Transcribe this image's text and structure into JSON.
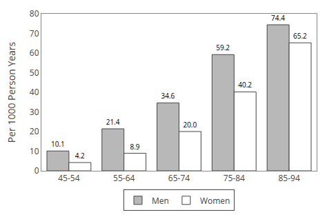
{
  "chart_data": {
    "type": "bar",
    "categories": [
      "45-54",
      "55-64",
      "65-74",
      "75-84",
      "85-94"
    ],
    "series": [
      {
        "name": "Men",
        "color": "#b8b8b8",
        "values": [
          10.1,
          21.4,
          34.6,
          59.2,
          74.4
        ]
      },
      {
        "name": "Women",
        "color": "#ffffff",
        "values": [
          4.2,
          8.9,
          20.0,
          40.2,
          65.2
        ],
        "value_labels": [
          "4.2",
          "8.9",
          "20.0",
          "40.2",
          "65.2"
        ]
      }
    ],
    "ylabel": "Per 1000 Person Years",
    "ylim": [
      0,
      80
    ],
    "yticks": [
      0,
      10,
      20,
      30,
      40,
      50,
      60,
      70,
      80
    ],
    "grid": false,
    "legend": "bottom",
    "data_labels": true
  }
}
